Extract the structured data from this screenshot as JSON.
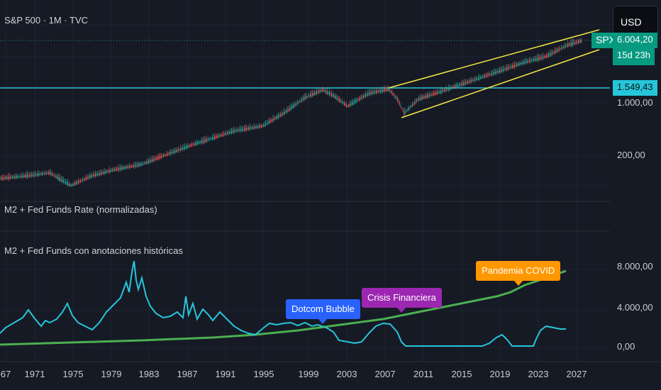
{
  "header": {
    "symbol_title": "S&P 500 · 1M · TVC",
    "currency": "USD"
  },
  "price_pane": {
    "symbol_tag": "SPX",
    "last_price": "6.004,20",
    "countdown": "15d 23h",
    "hline_price": "1.549,43",
    "axis_labels": [
      "1.000,00",
      "200,00"
    ],
    "colors": {
      "up": "#26a69a",
      "down": "#ef5350",
      "trendline": "#f5e642",
      "hline": "#26c6da",
      "tag": "#089981"
    }
  },
  "indicator_pane_1": {
    "title": "M2 + Fed Funds Rate (normalizadas)"
  },
  "indicator_pane_2": {
    "title": "M2 + Fed Funds con anotaciones históricas",
    "axis_labels": [
      "8.000,00",
      "4.000,00",
      "0,00"
    ],
    "annotations": [
      {
        "label": "Dotcom Bubble",
        "color": "#2962ff"
      },
      {
        "label": "Crisis Financiera",
        "color": "#9c27b0"
      },
      {
        "label": "Pandemia COVID",
        "color": "#ff9800"
      }
    ],
    "colors": {
      "m2": "#4caf50",
      "fedfunds": "#26c6da"
    }
  },
  "x_axis": {
    "labels": [
      "67",
      "1971",
      "1975",
      "1979",
      "1983",
      "1987",
      "1991",
      "1995",
      "1999",
      "2003",
      "2007",
      "2011",
      "2015",
      "2019",
      "2023",
      "2027"
    ]
  }
}
